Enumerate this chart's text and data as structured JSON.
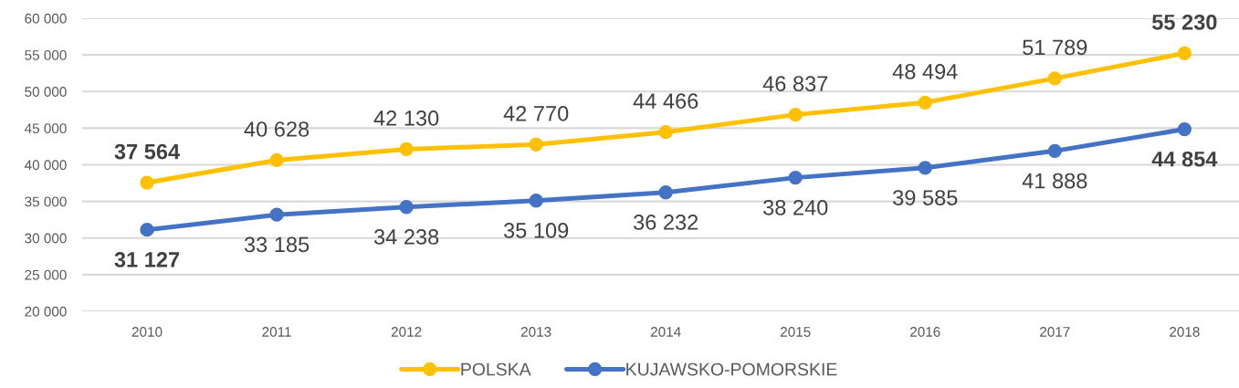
{
  "chart_data": {
    "type": "line",
    "categories": [
      "2010",
      "2011",
      "2012",
      "2013",
      "2014",
      "2015",
      "2016",
      "2017",
      "2018"
    ],
    "series": [
      {
        "name": "POLSKA",
        "color": "#ffc000",
        "values": [
          37564,
          40628,
          42130,
          42770,
          44466,
          46837,
          48494,
          51789,
          55230
        ],
        "value_labels": [
          "37 564",
          "40 628",
          "42 130",
          "42 770",
          "44 466",
          "46 837",
          "48 494",
          "51 789",
          "55 230"
        ]
      },
      {
        "name": "KUJAWSKO-POMORSKIE",
        "color": "#4472c4",
        "values": [
          31127,
          33185,
          34238,
          35109,
          36232,
          38240,
          39585,
          41888,
          44854
        ],
        "value_labels": [
          "31 127",
          "33 185",
          "34 238",
          "35 109",
          "36 232",
          "38 240",
          "39 585",
          "41 888",
          "44 854"
        ]
      }
    ],
    "ylim": [
      20000,
      60000
    ],
    "yticks": [
      {
        "value": 20000,
        "label": "20 000"
      },
      {
        "value": 25000,
        "label": "25 000"
      },
      {
        "value": 30000,
        "label": "30 000"
      },
      {
        "value": 35000,
        "label": "35 000"
      },
      {
        "value": 40000,
        "label": "40 000"
      },
      {
        "value": 45000,
        "label": "45 000"
      },
      {
        "value": 50000,
        "label": "50 000"
      },
      {
        "value": 55000,
        "label": "55 000"
      },
      {
        "value": 60000,
        "label": "60 000"
      }
    ],
    "grid": "y",
    "legend": "bottom",
    "marker": "circle",
    "line_style": "solid"
  }
}
